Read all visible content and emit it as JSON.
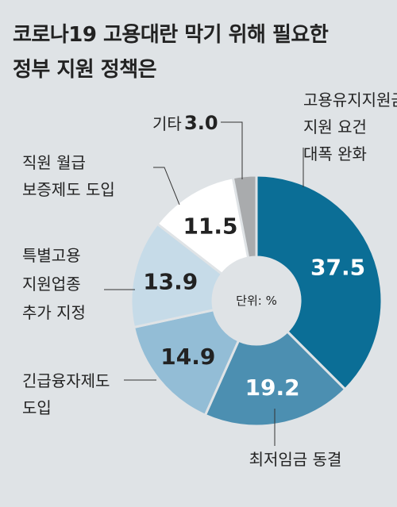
{
  "chart_data": {
    "type": "pie",
    "variant": "donut",
    "title_lines": [
      "코로나19 고용대란 막기 위해 필요한",
      "정부 지원 정책은"
    ],
    "unit_label": "단위: %",
    "slices": [
      {
        "label_lines": [
          "고용유지지원금",
          "지원 요건",
          "대폭 완화"
        ],
        "value": 37.5,
        "color": "#0b6e96"
      },
      {
        "label_lines": [
          "최저임금 동결"
        ],
        "value": 19.2,
        "color": "#4c8fb1"
      },
      {
        "label_lines": [
          "긴급융자제도",
          "도입"
        ],
        "value": 14.9,
        "color": "#93bdd6"
      },
      {
        "label_lines": [
          "특별고용",
          "지원업종",
          "추가 지정"
        ],
        "value": 13.9,
        "color": "#c6dbe8"
      },
      {
        "label_lines": [
          "직원 월급",
          "보증제도 도입"
        ],
        "value": 11.5,
        "color": "#ffffff"
      },
      {
        "label_lines": [
          "기타"
        ],
        "value": 3.0,
        "color": "#a9abad"
      }
    ]
  }
}
